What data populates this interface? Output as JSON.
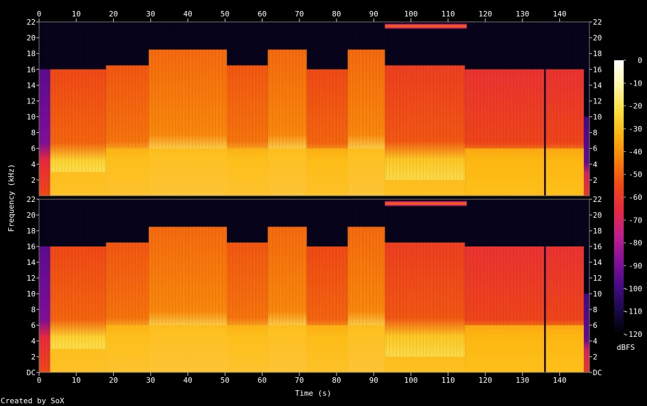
{
  "chart_data": {
    "type": "heatmap",
    "channels": 2,
    "xlabel": "Time (s)",
    "ylabel": "Frequency (kHz)",
    "xlim": [
      0,
      148
    ],
    "ylim": [
      0,
      22
    ],
    "x_ticks": [
      0,
      10,
      20,
      30,
      40,
      50,
      60,
      70,
      80,
      90,
      100,
      110,
      120,
      130,
      140
    ],
    "channel_ticks": [
      {
        "labels": [
          "22",
          "20",
          "18",
          "16",
          "14",
          "12",
          "10",
          "8",
          "6",
          "4",
          "2"
        ],
        "values": [
          22,
          20,
          18,
          16,
          14,
          12,
          10,
          8,
          6,
          4,
          2
        ]
      },
      {
        "labels": [
          "22",
          "20",
          "18",
          "16",
          "14",
          "12",
          "10",
          "8",
          "6",
          "4",
          "2",
          "DC"
        ],
        "values": [
          22,
          20,
          18,
          16,
          14,
          12,
          10,
          8,
          6,
          4,
          2,
          0
        ]
      }
    ],
    "colorbar": {
      "label": "dBFS",
      "ticks": [
        0,
        -10,
        -20,
        -30,
        -40,
        -50,
        -60,
        -70,
        -80,
        -90,
        -100,
        -110,
        -120
      ],
      "range": [
        -120,
        0
      ],
      "colors": [
        "#000000",
        "#1a0a4a",
        "#4a0a8a",
        "#8a109a",
        "#c0208a",
        "#e8283e",
        "#f04a14",
        "#f8800a",
        "#fcb40e",
        "#fde040",
        "#fff6a8",
        "#ffffff"
      ]
    },
    "segments": [
      {
        "start": 0,
        "end": 3,
        "cutoff_khz": 16,
        "level_db": -95
      },
      {
        "start": 3,
        "end": 18,
        "cutoff_khz": 16,
        "level_db": -55
      },
      {
        "start": 18,
        "end": 29.5,
        "cutoff_khz": 16.5,
        "level_db": -52
      },
      {
        "start": 29.5,
        "end": 40,
        "cutoff_khz": 18.5,
        "level_db": -48
      },
      {
        "start": 40,
        "end": 50.5,
        "cutoff_khz": 18.5,
        "level_db": -48
      },
      {
        "start": 50.5,
        "end": 61.5,
        "cutoff_khz": 16.5,
        "level_db": -52
      },
      {
        "start": 61.5,
        "end": 72,
        "cutoff_khz": 18.5,
        "level_db": -48
      },
      {
        "start": 72,
        "end": 83,
        "cutoff_khz": 16,
        "level_db": -55
      },
      {
        "start": 83,
        "end": 93,
        "cutoff_khz": 18.5,
        "level_db": -48
      },
      {
        "start": 93,
        "end": 114.5,
        "cutoff_khz": 16.5,
        "level_db": -58
      },
      {
        "start": 114.5,
        "end": 146.5,
        "cutoff_khz": 16,
        "level_db": -62
      },
      {
        "start": 146.5,
        "end": 148,
        "cutoff_khz": 10,
        "level_db": -100
      }
    ],
    "energy_floor": [
      {
        "start": 3,
        "end": 18,
        "khz": 3
      },
      {
        "start": 18,
        "end": 93,
        "khz": 6
      },
      {
        "start": 93,
        "end": 114.5,
        "khz": 2
      },
      {
        "start": 114.5,
        "end": 146.5,
        "khz": 6
      }
    ],
    "tone_band": {
      "start": 93,
      "end": 115,
      "khz": 21.5
    },
    "dropout": {
      "time": 136
    }
  },
  "footer": {
    "credit": "Created by SoX"
  }
}
